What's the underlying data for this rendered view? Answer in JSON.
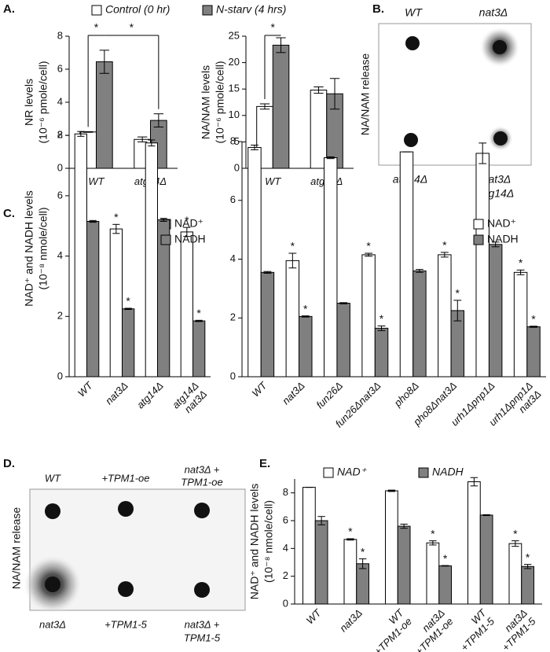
{
  "panels": {
    "a": "A.",
    "b": "B.",
    "c": "C.",
    "d": "D.",
    "e": "E."
  },
  "blot_b": {
    "ylabel": "NA/NAM release",
    "top": [
      "WT",
      "nat3Δ"
    ],
    "bottom": [
      "atg14Δ",
      [
        "nat3Δ",
        "atg14Δ"
      ]
    ]
  },
  "blot_d": {
    "ylabel": "NA/NAM release",
    "top": [
      "WT",
      "+TPM1-oe",
      [
        "nat3Δ +",
        "TPM1-oe"
      ]
    ],
    "bottom": [
      "nat3Δ",
      "+TPM1-5",
      [
        "nat3Δ +",
        "TPM1-5"
      ]
    ]
  },
  "chart_data": [
    {
      "type": "bar",
      "ylabel": [
        "NR levels",
        "(10⁻⁶ pmole/cell)"
      ],
      "categories": [
        "WT",
        "atg14Δ"
      ],
      "series": [
        {
          "name": "Control (0 hr)",
          "color": "#ffffff",
          "values": [
            2.2,
            1.75
          ],
          "errors": [
            0.02,
            0.15
          ]
        },
        {
          "name": "N-starv (4 hrs)",
          "color": "#808080",
          "values": [
            6.45,
            2.9
          ],
          "errors": [
            0.7,
            0.4
          ]
        }
      ],
      "ylim": [
        0,
        8
      ],
      "yticks": [
        0,
        2,
        4,
        6,
        8
      ],
      "legend": "top",
      "significance": [
        {
          "text": "*",
          "from": [
            0,
            0
          ],
          "to": [
            1,
            0
          ]
        },
        {
          "text": "*",
          "from": [
            1,
            0
          ],
          "to": [
            1,
            1
          ]
        }
      ]
    },
    {
      "type": "bar",
      "ylabel": [
        "NA/NAM levels",
        "(10⁻⁶ pmole/cell)"
      ],
      "categories": [
        "WT",
        "atg14Δ"
      ],
      "series": [
        {
          "color": "#ffffff",
          "values": [
            11.7,
            14.8
          ],
          "errors": [
            0.5,
            0.6
          ]
        },
        {
          "color": "#808080",
          "values": [
            23.3,
            14.1
          ],
          "errors": [
            1.4,
            2.9
          ]
        }
      ],
      "ylim": [
        0,
        25
      ],
      "yticks": [
        0,
        5,
        10,
        15,
        20,
        25
      ],
      "significance": [
        {
          "text": "*",
          "from": [
            0,
            0
          ],
          "to": [
            1,
            0
          ]
        }
      ]
    },
    {
      "type": "bar",
      "ylabel": [
        "NAD⁺ and NADH levels",
        "(10⁻⁸ nmole/cell)"
      ],
      "categories": [
        "WT",
        "nat3Δ",
        "atg14Δ",
        [
          "atg14Δ",
          "nat3Δ"
        ]
      ],
      "series": [
        {
          "name": "NAD⁺",
          "color": "#ffffff",
          "values": [
            8.05,
            4.9,
            7.75,
            4.8
          ],
          "errors": [
            0.08,
            0.15,
            0.1,
            0.15
          ],
          "annotations": [
            null,
            "*",
            null,
            "*"
          ]
        },
        {
          "name": "NADH",
          "color": "#808080",
          "values": [
            5.15,
            2.25,
            5.2,
            1.85
          ],
          "errors": [
            0.03,
            0.02,
            0.05,
            0.02
          ],
          "annotations": [
            null,
            "*",
            null,
            "*"
          ]
        }
      ],
      "ylim": [
        0,
        8.5
      ],
      "yticks": [
        0,
        2,
        4,
        6,
        8
      ],
      "legend": "upper right"
    },
    {
      "type": "bar",
      "categories": [
        "WT",
        "nat3Δ",
        "fun26Δ",
        "fun26Δnat3Δ",
        "pho8Δ",
        "pho8Δnat3Δ",
        "urh1Δpnp1Δ",
        [
          "urh1Δpnp1Δ",
          "nat3Δ"
        ]
      ],
      "series": [
        {
          "name": "NAD⁺",
          "color": "#ffffff",
          "values": [
            7.8,
            3.95,
            7.45,
            4.15,
            7.65,
            4.15,
            7.6,
            3.55
          ],
          "errors": [
            0.08,
            0.25,
            0.03,
            0.05,
            0,
            0.08,
            0.35,
            0.08
          ],
          "annotations": [
            null,
            "*",
            null,
            "*",
            null,
            "*",
            null,
            "*"
          ]
        },
        {
          "name": "NADH",
          "color": "#808080",
          "values": [
            3.55,
            2.05,
            2.5,
            1.65,
            3.6,
            2.25,
            4.5,
            1.7
          ],
          "errors": [
            0.03,
            0.02,
            0.02,
            0.08,
            0.05,
            0.35,
            0.08,
            0.02
          ],
          "annotations": [
            null,
            "*",
            null,
            "*",
            null,
            "*",
            null,
            "*"
          ]
        }
      ],
      "ylim": [
        0,
        8
      ],
      "yticks": [
        0,
        2,
        4,
        6,
        8
      ],
      "legend": "upper right"
    },
    {
      "type": "bar",
      "ylabel": [
        "NAD⁺ and NADH levels",
        "(10⁻⁸ nmole/cell)"
      ],
      "categories": [
        "WT",
        "nat3Δ",
        [
          "WT",
          "+TPM1-oe"
        ],
        [
          "nat3Δ",
          "+TPM1-oe"
        ],
        [
          "WT",
          "+TPM1-5"
        ],
        [
          "nat3Δ",
          "+TPM1-5"
        ]
      ],
      "series": [
        {
          "name": "NAD⁺",
          "color": "#ffffff",
          "values": [
            8.4,
            4.65,
            8.15,
            4.4,
            8.8,
            4.35
          ],
          "errors": [
            0,
            0.05,
            0.05,
            0.15,
            0.3,
            0.2
          ],
          "annotations": [
            null,
            "*",
            null,
            "*",
            null,
            "*"
          ]
        },
        {
          "name": "NADH",
          "color": "#808080",
          "values": [
            6.0,
            2.9,
            5.6,
            2.75,
            6.4,
            2.7
          ],
          "errors": [
            0.3,
            0.35,
            0.15,
            0.02,
            0.03,
            0.15
          ],
          "annotations": [
            null,
            "*",
            null,
            "*",
            null,
            "*"
          ]
        }
      ],
      "ylim": [
        0,
        9
      ],
      "yticks": [
        0,
        2,
        4,
        6,
        8
      ],
      "legend": "top"
    }
  ]
}
